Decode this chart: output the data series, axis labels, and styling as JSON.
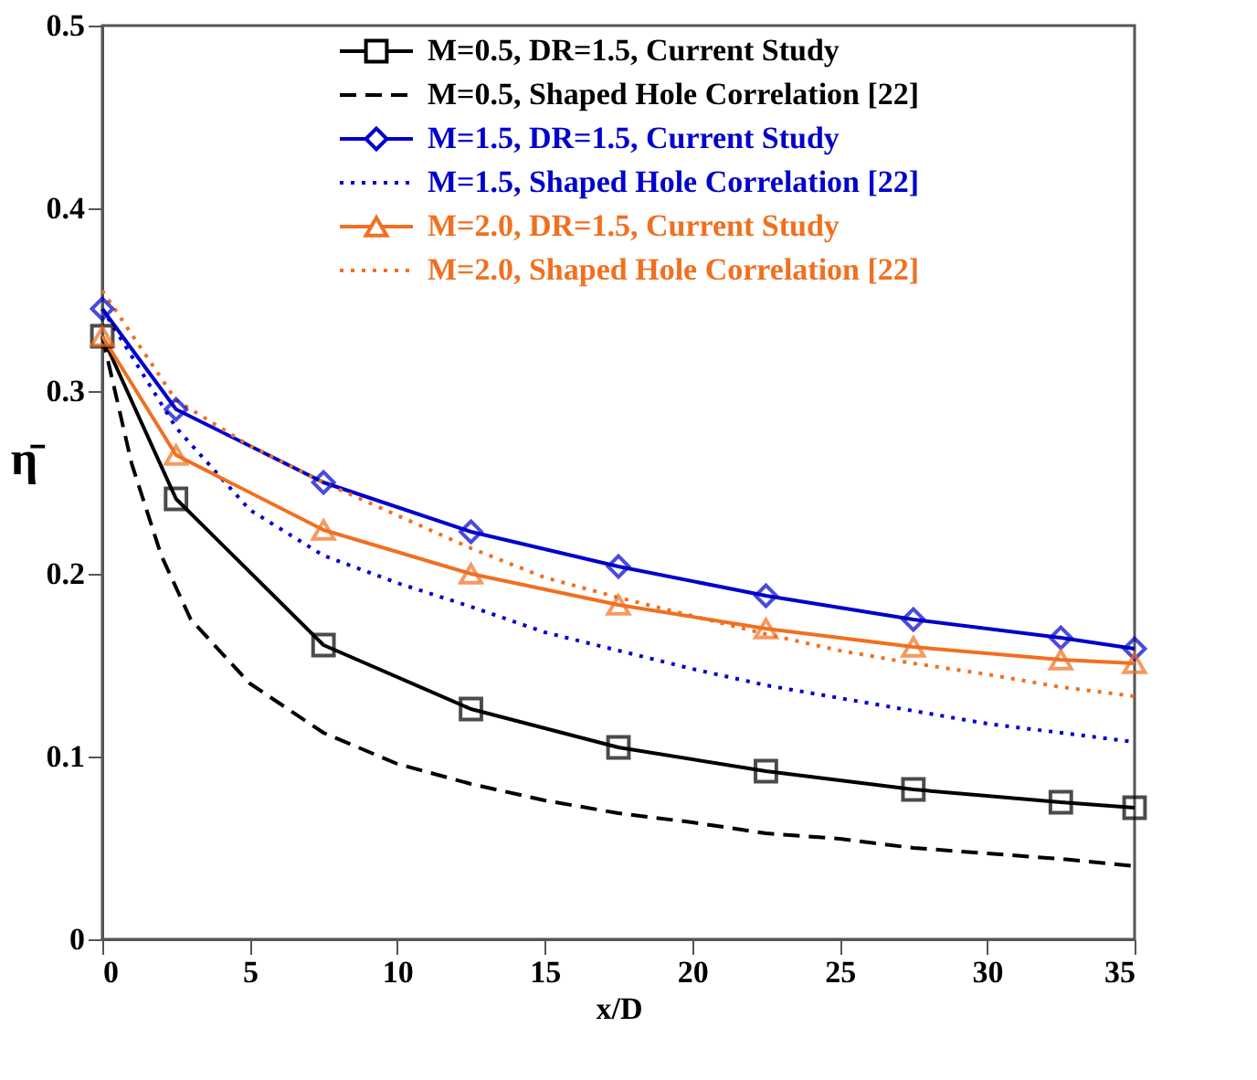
{
  "chart_data": {
    "type": "line",
    "xlabel": "x/D",
    "ylabel": "η̄",
    "xlim": [
      0,
      35
    ],
    "ylim": [
      0,
      0.5
    ],
    "xticks": [
      0,
      5,
      10,
      15,
      20,
      25,
      30,
      35
    ],
    "yticks": [
      0,
      0.1,
      0.2,
      0.3,
      0.4,
      0.5
    ],
    "grid": false,
    "legend": "top right",
    "series": [
      {
        "name": "M=0.5, DR=1.5, Current Study",
        "color": "#000000",
        "marker": "square",
        "line_style": "solid",
        "x": [
          0,
          2.5,
          7.5,
          12.5,
          17.5,
          22.5,
          27.5,
          32.5,
          35
        ],
        "values": [
          0.33,
          0.241,
          0.161,
          0.126,
          0.105,
          0.092,
          0.082,
          0.075,
          0.072
        ]
      },
      {
        "name": "M=0.5, Shaped Hole Correlation [22]",
        "color": "#000000",
        "marker": "none",
        "line_style": "dashed",
        "x": [
          0,
          1,
          2,
          3,
          5,
          7.5,
          10,
          12.5,
          15,
          17.5,
          20,
          22.5,
          25,
          27.5,
          30,
          32.5,
          35
        ],
        "values": [
          0.33,
          0.26,
          0.21,
          0.175,
          0.14,
          0.113,
          0.096,
          0.085,
          0.076,
          0.069,
          0.064,
          0.058,
          0.055,
          0.05,
          0.047,
          0.044,
          0.04
        ]
      },
      {
        "name": "M=1.5, DR=1.5, Current Study",
        "color": "#0000cc",
        "marker": "diamond",
        "line_style": "solid",
        "x": [
          0,
          2.5,
          7.5,
          12.5,
          17.5,
          22.5,
          27.5,
          32.5,
          35
        ],
        "values": [
          0.345,
          0.29,
          0.25,
          0.223,
          0.204,
          0.188,
          0.175,
          0.165,
          0.159
        ]
      },
      {
        "name": "M=1.5, Shaped Hole Correlation [22]",
        "color": "#0000cc",
        "marker": "none",
        "line_style": "dotted",
        "x": [
          0,
          2.5,
          5,
          7.5,
          10,
          12.5,
          15,
          17.5,
          20,
          22.5,
          25,
          27.5,
          30,
          32.5,
          35
        ],
        "values": [
          0.345,
          0.28,
          0.235,
          0.21,
          0.195,
          0.182,
          0.168,
          0.158,
          0.148,
          0.139,
          0.132,
          0.125,
          0.118,
          0.113,
          0.108
        ]
      },
      {
        "name": "M=2.0, DR=1.5, Current Study",
        "color": "#f07020",
        "marker": "triangle",
        "line_style": "solid",
        "x": [
          0,
          2.5,
          7.5,
          12.5,
          17.5,
          22.5,
          27.5,
          32.5,
          35
        ],
        "values": [
          0.33,
          0.265,
          0.224,
          0.2,
          0.183,
          0.17,
          0.16,
          0.153,
          0.151
        ]
      },
      {
        "name": "M=2.0, Shaped Hole Correlation [22]",
        "color": "#f07020",
        "marker": "none",
        "line_style": "dotted",
        "x": [
          0,
          2.5,
          5,
          7.5,
          10,
          12.5,
          15,
          17.5,
          20,
          22.5,
          25,
          27.5,
          30,
          32.5,
          35
        ],
        "values": [
          0.355,
          0.295,
          0.27,
          0.25,
          0.232,
          0.214,
          0.198,
          0.187,
          0.177,
          0.167,
          0.158,
          0.151,
          0.145,
          0.138,
          0.133
        ]
      }
    ]
  }
}
